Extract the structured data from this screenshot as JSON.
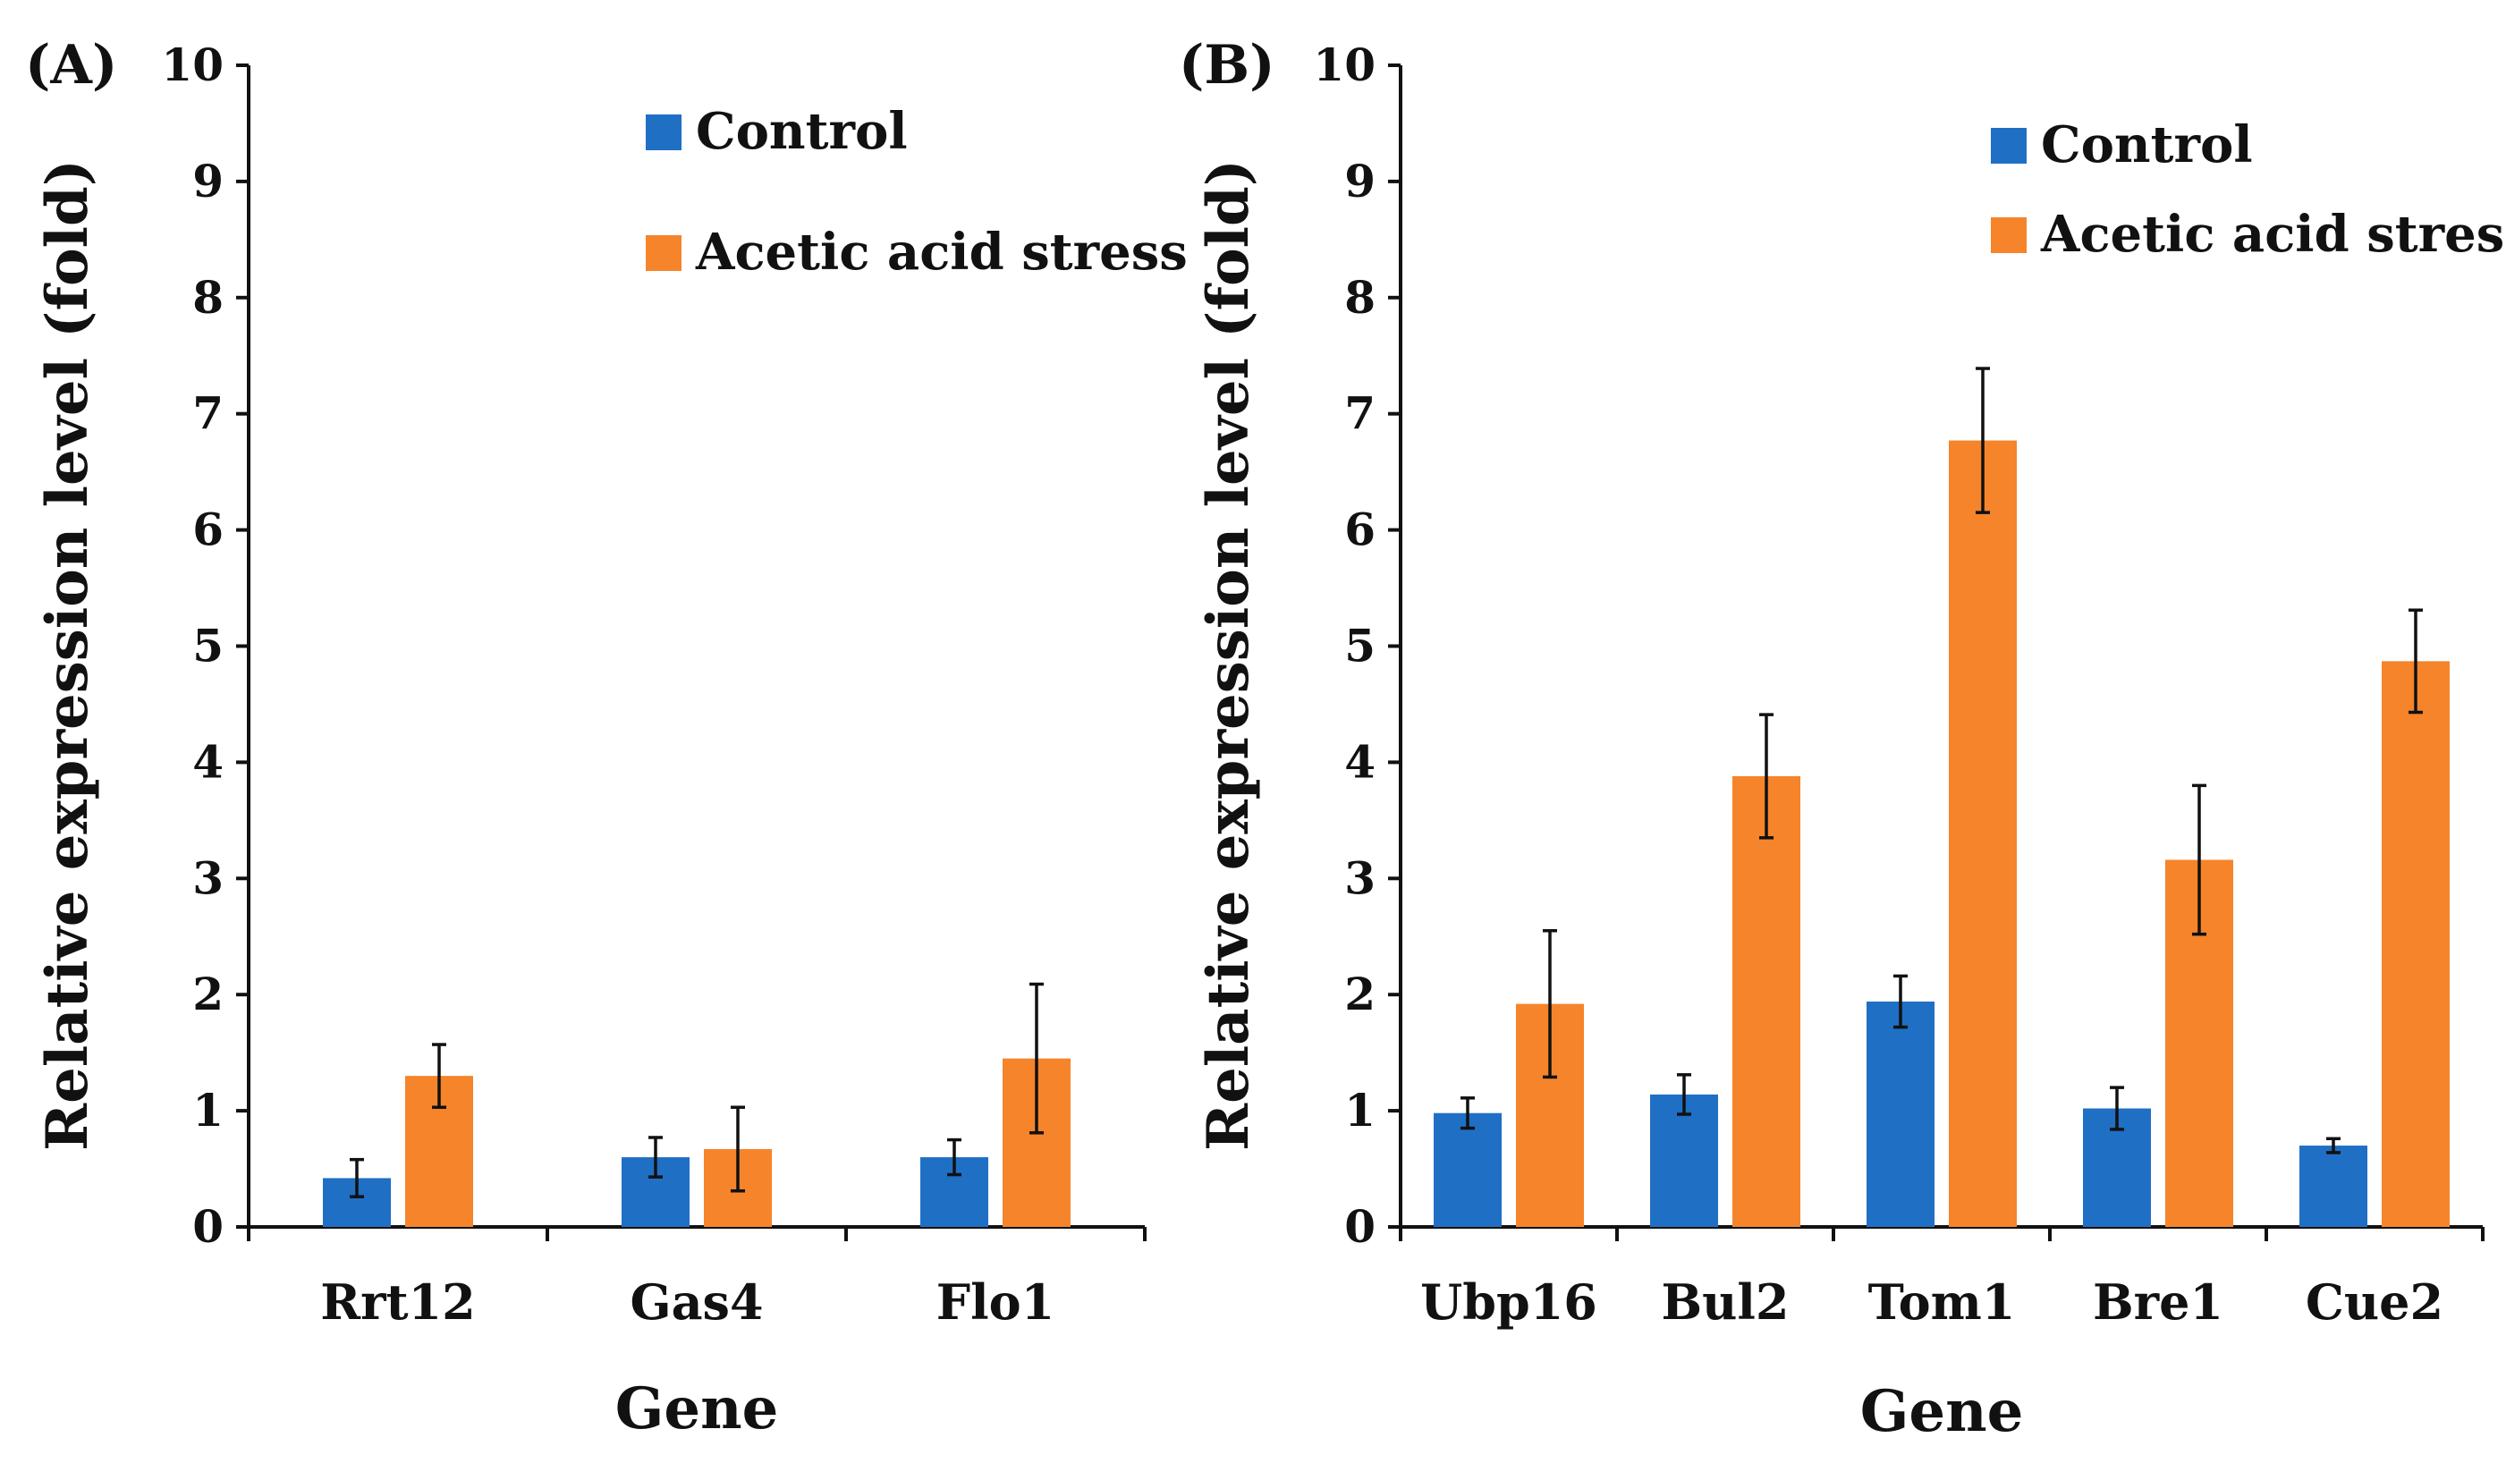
{
  "colors": {
    "control": "#1f6fc5",
    "acetic": "#f5842b",
    "axis": "#111111",
    "errorbar": "#111111"
  },
  "chart_data": [
    {
      "type": "bar",
      "panel_label": "(A)",
      "title": "",
      "xlabel": "Gene",
      "ylabel": "Relative expression level (fold)",
      "ylim": [
        0,
        10
      ],
      "yticks": [
        "0",
        "1",
        "2",
        "3",
        "4",
        "5",
        "6",
        "7",
        "8",
        "9",
        "10"
      ],
      "categories": [
        "Rrt12",
        "Gas4",
        "Flo1"
      ],
      "legend_position": "top-right",
      "series": [
        {
          "name": "Control",
          "color_key": "control",
          "values": [
            0.42,
            0.6,
            0.6
          ],
          "errors": [
            0.16,
            0.17,
            0.15
          ]
        },
        {
          "name": "Acetic acid stress",
          "color_key": "acetic",
          "values": [
            1.3,
            0.67,
            1.45
          ],
          "errors": [
            0.27,
            0.36,
            0.64
          ]
        }
      ]
    },
    {
      "type": "bar",
      "panel_label": "(B)",
      "title": "",
      "xlabel": "Gene",
      "ylabel": "Relative expression level (fold)",
      "ylim": [
        0,
        10
      ],
      "yticks": [
        "0",
        "1",
        "2",
        "3",
        "4",
        "5",
        "6",
        "7",
        "8",
        "9",
        "10"
      ],
      "categories": [
        "Ubp16",
        "Bul2",
        "Tom1",
        "Bre1",
        "Cue2"
      ],
      "legend_position": "top-right",
      "series": [
        {
          "name": "Control",
          "color_key": "control",
          "values": [
            0.98,
            1.14,
            1.94,
            1.02,
            0.7
          ],
          "errors": [
            0.13,
            0.17,
            0.22,
            0.18,
            0.06
          ]
        },
        {
          "name": "Acetic acid stress",
          "color_key": "acetic",
          "values": [
            1.92,
            3.88,
            6.77,
            3.16,
            4.87
          ],
          "errors": [
            0.63,
            0.53,
            0.62,
            0.64,
            0.44
          ]
        }
      ]
    }
  ]
}
